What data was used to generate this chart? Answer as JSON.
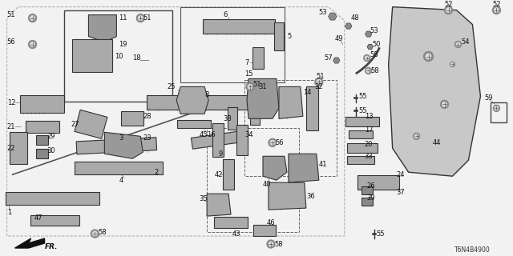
{
  "bg_color": "#f0f0f0",
  "line_color": "#1a1a1a",
  "diagram_id": "T6N4B4900",
  "fig_width": 6.4,
  "fig_height": 3.2
}
